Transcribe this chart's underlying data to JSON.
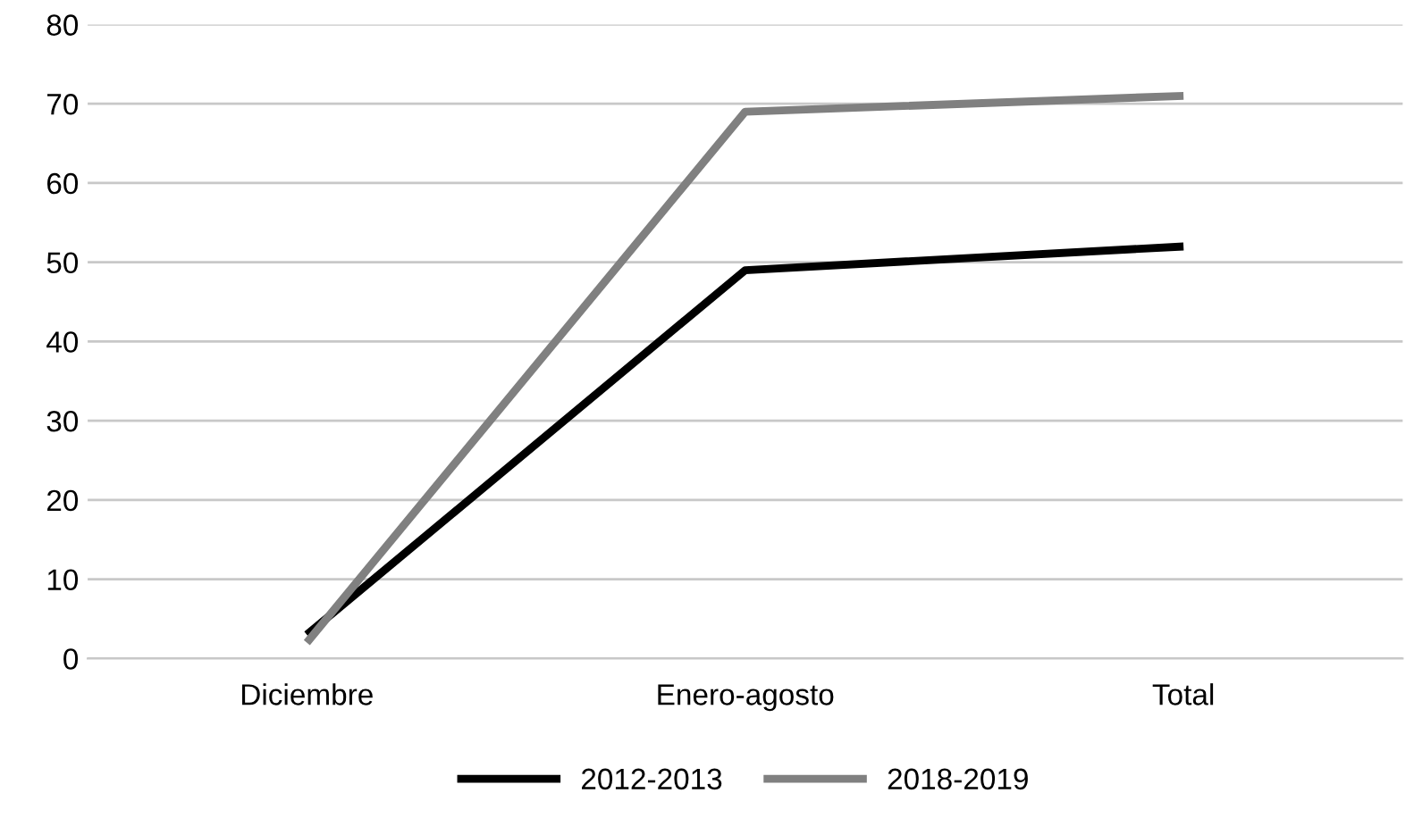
{
  "chart_data": {
    "type": "line",
    "categories": [
      "Diciembre",
      "Enero-agosto",
      "Total"
    ],
    "series": [
      {
        "name": "2012-2013",
        "color": "#000000",
        "values": [
          3,
          49,
          52
        ]
      },
      {
        "name": "2018-2019",
        "color": "#808080",
        "values": [
          2,
          69,
          71
        ]
      }
    ],
    "ylim": [
      0,
      80
    ],
    "yticks": [
      0,
      10,
      20,
      30,
      40,
      50,
      60,
      70,
      80
    ],
    "grid": "y",
    "legend": "bottom",
    "marker": "none",
    "line_style": "solid"
  }
}
